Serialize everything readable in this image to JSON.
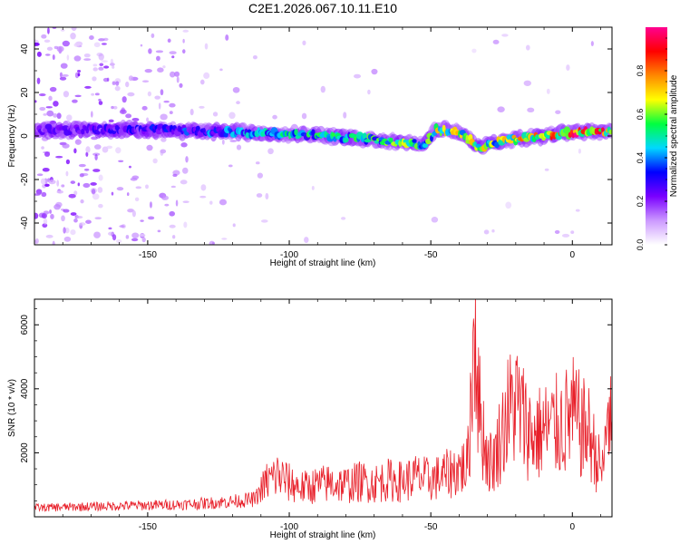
{
  "title": "C2E1.2026.067.10.11.E10",
  "chart_data": [
    {
      "type": "heatmap",
      "xlabel": "Height of straight line (km)",
      "ylabel": "Frequency (Hz)",
      "xlim": [
        -190,
        14
      ],
      "ylim": [
        -50,
        50
      ],
      "xticks": [
        -150,
        -100,
        -50,
        0
      ],
      "yticks": [
        -40,
        -20,
        0,
        20,
        40
      ],
      "grid": false,
      "colorbar": {
        "label": "Normalized spectral amplitude",
        "range": [
          0,
          1
        ],
        "ticks": [
          "0.0",
          "0.2",
          "0.4",
          "0.6",
          "0.8"
        ],
        "colors": [
          "#ffffff",
          "#cc99ff",
          "#7a00ff",
          "#0000ff",
          "#00d8ff",
          "#00ff40",
          "#ffff00",
          "#ff8800",
          "#ff0000",
          "#ff0090"
        ]
      },
      "ridge": [
        {
          "x": -190,
          "freq": 3,
          "amp": 0.22
        },
        {
          "x": -150,
          "freq": 3,
          "amp": 0.3
        },
        {
          "x": -125,
          "freq": 2,
          "amp": 0.4
        },
        {
          "x": -100,
          "freq": 1,
          "amp": 0.5
        },
        {
          "x": -75,
          "freq": -1,
          "amp": 0.5
        },
        {
          "x": -60,
          "freq": -3,
          "amp": 0.6
        },
        {
          "x": -52,
          "freq": -4,
          "amp": 0.55
        },
        {
          "x": -48,
          "freq": 3,
          "amp": 0.65
        },
        {
          "x": -40,
          "freq": 2,
          "amp": 0.7
        },
        {
          "x": -32,
          "freq": -6,
          "amp": 0.65
        },
        {
          "x": -28,
          "freq": -3,
          "amp": 0.6
        },
        {
          "x": -18,
          "freq": -1,
          "amp": 0.75
        },
        {
          "x": -5,
          "freq": 1,
          "amp": 0.8
        },
        {
          "x": 3,
          "freq": 2,
          "amp": 0.9
        },
        {
          "x": 14,
          "freq": 2,
          "amp": 0.8
        }
      ]
    },
    {
      "type": "line",
      "xlabel": "Height of straight line (km)",
      "ylabel": "SNR (10 * v/v)",
      "xlim": [
        -190,
        14
      ],
      "ylim": [
        0,
        6800
      ],
      "xticks": [
        -150,
        -100,
        -50,
        0
      ],
      "yticks": [
        2000,
        4000,
        6000
      ],
      "grid": false,
      "series": [
        {
          "color": "#e8202a",
          "x": [
            -190,
            -180,
            -170,
            -160,
            -150,
            -140,
            -130,
            -120,
            -112,
            -108,
            -104,
            -100,
            -95,
            -90,
            -85,
            -80,
            -75,
            -70,
            -65,
            -60,
            -55,
            -50,
            -45,
            -40,
            -37,
            -35.5,
            -34.5,
            -33,
            -30,
            -28,
            -26,
            -23,
            -20,
            -17,
            -14,
            -10,
            -6,
            -3,
            0,
            3,
            6,
            9,
            11,
            12.5,
            14
          ],
          "y": [
            280,
            300,
            320,
            340,
            360,
            380,
            420,
            480,
            550,
            1100,
            1300,
            1050,
            900,
            1000,
            1050,
            1000,
            1100,
            1050,
            1150,
            1100,
            1250,
            1150,
            1300,
            1500,
            1600,
            4200,
            6700,
            3400,
            1800,
            1700,
            2300,
            3200,
            3600,
            3000,
            2500,
            2700,
            2800,
            2900,
            3200,
            2800,
            2600,
            1700,
            1400,
            3600,
            2400
          ]
        }
      ]
    }
  ]
}
